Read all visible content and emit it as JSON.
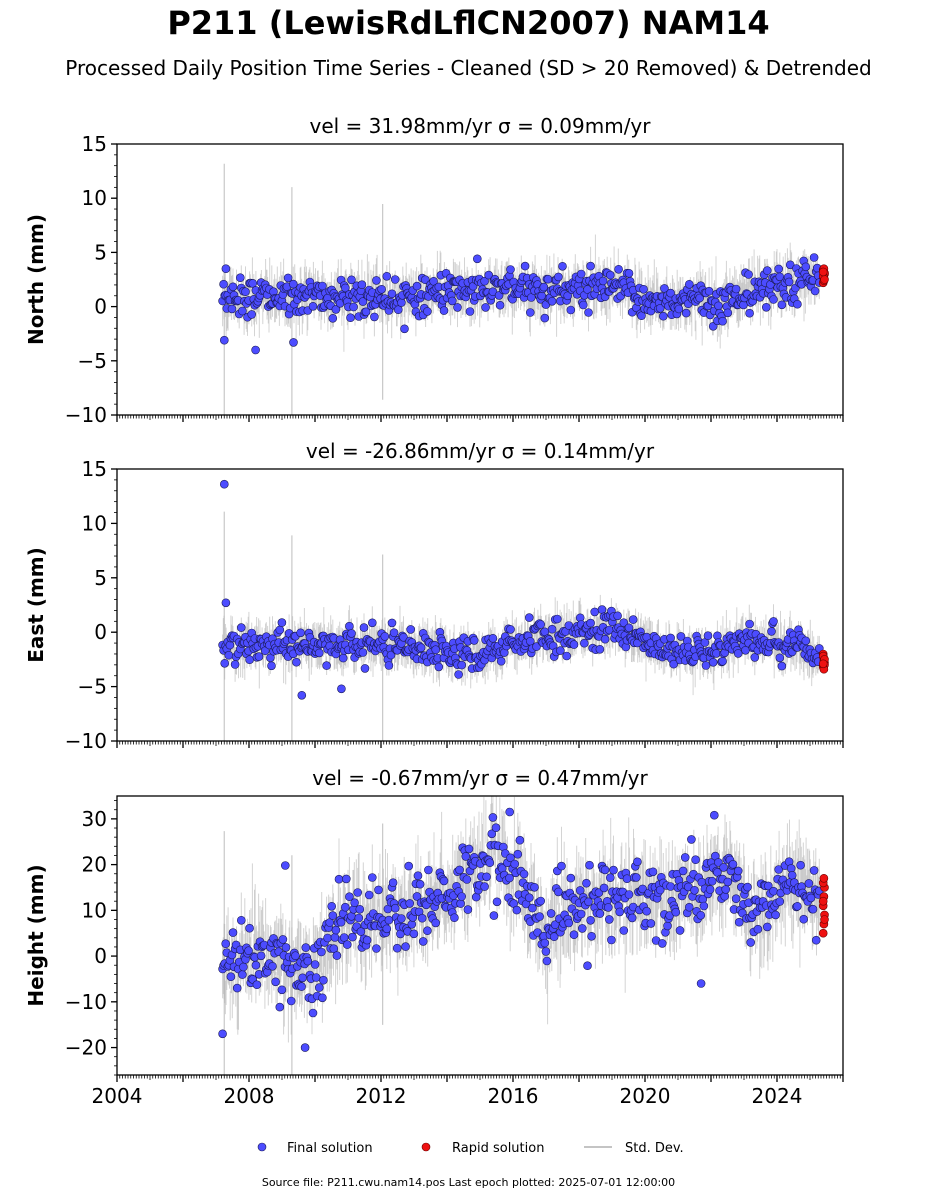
{
  "title": "P211 (LewisRdLflCN2007) NAM14",
  "subtitle": "Processed Daily Position Time Series - Cleaned (SD > 20 Removed) & Detrended",
  "footer": "Source file: P211.cwu.nam14.pos  Last epoch plotted: 2025-07-01 12:00:00",
  "colors": {
    "final": "#4c4cff",
    "final_edge": "#1a1a55",
    "rapid": "#ee1111",
    "stddev": "#b0b0b0"
  },
  "chart_data": [
    {
      "type": "scatter",
      "ylabel": "North (mm)",
      "vel_label": "vel = 31.98mm/yr   σ = 0.09mm/yr",
      "xlim": [
        2004,
        2026
      ],
      "ylim": [
        -10,
        15
      ],
      "yticks": [
        -10,
        -5,
        0,
        5,
        10,
        15
      ],
      "ytick_labels": [
        "−10",
        "−5",
        "0",
        "5",
        "10",
        "15"
      ],
      "start": 2007.2,
      "end": 2025.45,
      "rapid_start": 2025.3,
      "trend": [
        [
          2007.2,
          0.8
        ],
        [
          2009.5,
          0.9
        ],
        [
          2012,
          0.9
        ],
        [
          2014.5,
          1.4
        ],
        [
          2016,
          1.5
        ],
        [
          2019.5,
          1.6
        ],
        [
          2020,
          0.6
        ],
        [
          2022.5,
          0.4
        ],
        [
          2023.5,
          1.5
        ],
        [
          2025.45,
          2.8
        ]
      ],
      "noise": 1.3,
      "sd_spread": 1.8,
      "outliers": [
        [
          2007.25,
          -3.1
        ],
        [
          2007.3,
          3.5
        ],
        [
          2008.2,
          -4.0
        ],
        [
          2009.35,
          -3.3
        ]
      ],
      "rapid_values": [
        2.2,
        2.6,
        3.0,
        3.4,
        2.4,
        3.1,
        2.8,
        3.5,
        2.5,
        3.2
      ]
    },
    {
      "type": "scatter",
      "ylabel": "East (mm)",
      "vel_label": "vel = -26.86mm/yr   σ = 0.14mm/yr",
      "xlim": [
        2004,
        2026
      ],
      "ylim": [
        -10,
        15
      ],
      "yticks": [
        -10,
        -5,
        0,
        5,
        10,
        15
      ],
      "ytick_labels": [
        "−10",
        "−5",
        "0",
        "5",
        "10",
        "15"
      ],
      "start": 2007.2,
      "end": 2025.45,
      "rapid_start": 2025.3,
      "trend": [
        [
          2007.2,
          -1.3
        ],
        [
          2010,
          -1.2
        ],
        [
          2013,
          -1.5
        ],
        [
          2015,
          -2.0
        ],
        [
          2016.5,
          -0.8
        ],
        [
          2018,
          0.0
        ],
        [
          2019,
          0.5
        ],
        [
          2020.5,
          -1.5
        ],
        [
          2022,
          -2.0
        ],
        [
          2023,
          -0.5
        ],
        [
          2024.5,
          -1.2
        ],
        [
          2025.45,
          -2.8
        ]
      ],
      "noise": 1.1,
      "sd_spread": 1.6,
      "outliers": [
        [
          2007.25,
          13.6
        ],
        [
          2007.3,
          2.7
        ],
        [
          2009.6,
          -5.8
        ],
        [
          2010.8,
          -5.2
        ]
      ],
      "rapid_values": [
        -2.0,
        -2.4,
        -2.8,
        -3.2,
        -2.6,
        -3.0,
        -2.2,
        -3.4,
        -2.5,
        -2.9
      ]
    },
    {
      "type": "scatter",
      "ylabel": "Height (mm)",
      "vel_label": "vel = -0.67mm/yr   σ = 0.47mm/yr",
      "xlim": [
        2004,
        2026
      ],
      "ylim": [
        -26,
        35
      ],
      "yticks": [
        -20,
        -10,
        0,
        10,
        20,
        30
      ],
      "ytick_labels": [
        "−20",
        "−10",
        "0",
        "10",
        "20",
        "30"
      ],
      "xticks": [
        2004,
        2008,
        2012,
        2016,
        2020,
        2024
      ],
      "start": 2007.2,
      "end": 2025.45,
      "rapid_start": 2025.3,
      "trend": [
        [
          2007.2,
          -3
        ],
        [
          2008.5,
          0
        ],
        [
          2010,
          -5
        ],
        [
          2010.8,
          8
        ],
        [
          2012,
          8
        ],
        [
          2013.5,
          12
        ],
        [
          2015.5,
          22
        ],
        [
          2016.5,
          12
        ],
        [
          2017,
          3
        ],
        [
          2017.5,
          10
        ],
        [
          2019,
          12
        ],
        [
          2021,
          14
        ],
        [
          2022.5,
          18
        ],
        [
          2023.3,
          8
        ],
        [
          2024.5,
          16
        ],
        [
          2025.45,
          12
        ]
      ],
      "noise": 6.0,
      "sd_spread": 7.0,
      "outliers": [
        [
          2007.2,
          -17
        ],
        [
          2009.1,
          19.8
        ],
        [
          2009.7,
          -20
        ],
        [
          2021.7,
          -6
        ],
        [
          2015.9,
          31.5
        ]
      ],
      "rapid_values": [
        5,
        7,
        9,
        11,
        13,
        15,
        16,
        17,
        8,
        12
      ]
    }
  ],
  "legend": {
    "final": "Final solution",
    "rapid": "Rapid solution",
    "stddev": "Std. Dev."
  }
}
